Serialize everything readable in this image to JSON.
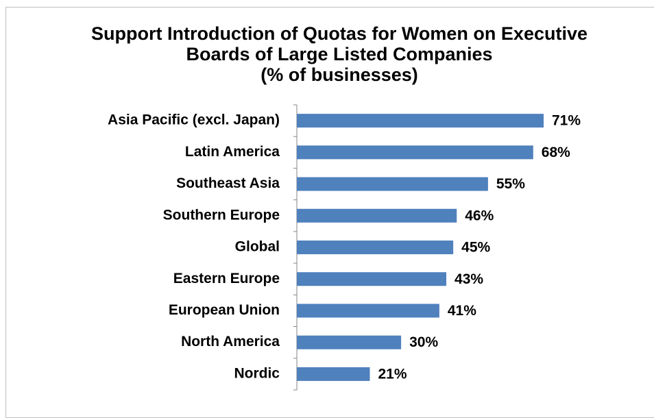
{
  "chart_data": {
    "type": "bar",
    "orientation": "horizontal",
    "title": "Support Introduction of Quotas for Women on Executive Boards of Large Listed Companies",
    "subtitle": "(% of businesses)",
    "categories": [
      "Asia Pacific (excl. Japan)",
      "Latin America",
      "Southeast Asia",
      "Southern Europe",
      "Global",
      "Eastern Europe",
      "European Union",
      "North America",
      "Nordic"
    ],
    "values": [
      71,
      68,
      55,
      46,
      45,
      43,
      41,
      30,
      21
    ],
    "value_labels": [
      "71%",
      "68%",
      "55%",
      "46%",
      "45%",
      "43%",
      "41%",
      "30%",
      "21%"
    ],
    "color": "#4f81bd"
  }
}
